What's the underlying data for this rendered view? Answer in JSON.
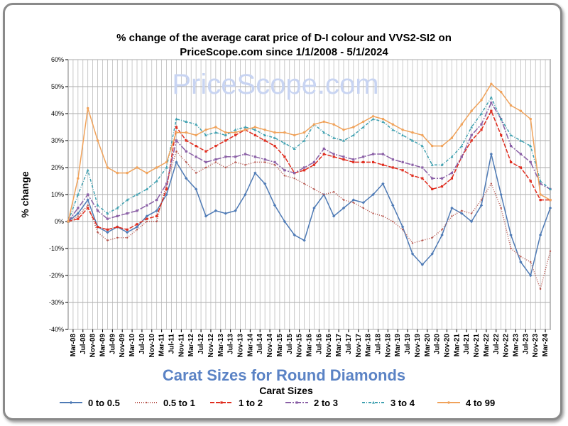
{
  "chart_data": {
    "type": "line",
    "title_line1": "% change of the average carat price of  D-I colour and VVS2-SI2  on",
    "title_line2": "PriceScope.com since 1/1/2008 - 5/1/2024",
    "watermark": "PriceScope.com",
    "ylabel": "% change",
    "banner": "Carat Sizes for Round Diamonds",
    "xlabel": "Carat Sizes",
    "ylim": [
      -40,
      60
    ],
    "y_ticks": [
      "-40%",
      "-30%",
      "-20%",
      "-10%",
      "0%",
      "10%",
      "20%",
      "30%",
      "40%",
      "50%",
      "60%"
    ],
    "x_tick_labels": [
      "Mar-08",
      "Jul-08",
      "Nov-08",
      "Mar-09",
      "Jul-09",
      "Nov-09",
      "Mar-10",
      "Jul-10",
      "Nov-10",
      "Mar-11",
      "Jul-11",
      "Nov-11",
      "Mar-12",
      "Jul-12",
      "Nov-12",
      "Mar-13",
      "Jul-13",
      "Nov-13",
      "Mar-14",
      "Jul-14",
      "Nov-14",
      "Mar-15",
      "Jul-15",
      "Nov-15",
      "Mar-16",
      "Jul-16",
      "Nov-16",
      "Mar-17",
      "Jul-17",
      "Nov-17",
      "Mar-18",
      "Jul-18",
      "Nov-18",
      "Mar-19",
      "Jul-19",
      "Nov-19",
      "Mar-20",
      "Jul-20",
      "Nov-20",
      "Mar-21",
      "Jul-21",
      "Nov-21",
      "Mar-22",
      "Jul-22",
      "Nov-22",
      "Mar-23",
      "Jul-23",
      "Nov-23",
      "Mar-24"
    ],
    "x_start": "2008-01",
    "x_end": "2024-05",
    "grid": true,
    "legend_position": "bottom",
    "series": [
      {
        "name": "0 to 0.5",
        "color": "#4e7ab5",
        "dash": "solid",
        "marker": "diamond",
        "x": [
          "2008-01",
          "2008-05",
          "2008-09",
          "2009-01",
          "2009-05",
          "2009-09",
          "2010-01",
          "2010-05",
          "2010-09",
          "2011-01",
          "2011-05",
          "2011-09",
          "2012-01",
          "2012-05",
          "2012-09",
          "2013-01",
          "2013-05",
          "2013-09",
          "2014-01",
          "2014-05",
          "2014-09",
          "2015-01",
          "2015-05",
          "2015-09",
          "2016-01",
          "2016-05",
          "2016-09",
          "2017-01",
          "2017-05",
          "2017-09",
          "2018-01",
          "2018-05",
          "2018-09",
          "2019-01",
          "2019-05",
          "2019-09",
          "2020-01",
          "2020-05",
          "2020-09",
          "2021-01",
          "2021-05",
          "2021-09",
          "2022-01",
          "2022-05",
          "2022-09",
          "2023-01",
          "2023-05",
          "2023-09",
          "2024-01",
          "2024-05"
        ],
        "values": [
          0,
          3,
          8,
          -2,
          -4,
          -2,
          -4,
          -2,
          2,
          4,
          10,
          22,
          16,
          12,
          2,
          4,
          3,
          4,
          10,
          18,
          14,
          6,
          0,
          -5,
          -7,
          5,
          10,
          2,
          5,
          8,
          7,
          10,
          14,
          6,
          -2,
          -12,
          -16,
          -12,
          -5,
          5,
          3,
          0,
          6,
          25,
          10,
          -5,
          -15,
          -20,
          -5,
          5
        ]
      },
      {
        "name": "0.5 to 1",
        "color": "#b5524a",
        "dash": "1,2",
        "marker": "dot",
        "x": [
          "2008-01",
          "2008-05",
          "2008-09",
          "2009-01",
          "2009-05",
          "2009-09",
          "2010-01",
          "2010-05",
          "2010-09",
          "2011-01",
          "2011-05",
          "2011-09",
          "2012-01",
          "2012-05",
          "2012-09",
          "2013-01",
          "2013-05",
          "2013-09",
          "2014-01",
          "2014-05",
          "2014-09",
          "2015-01",
          "2015-05",
          "2015-09",
          "2016-01",
          "2016-05",
          "2016-09",
          "2017-01",
          "2017-05",
          "2017-09",
          "2018-01",
          "2018-05",
          "2018-09",
          "2019-01",
          "2019-05",
          "2019-09",
          "2020-01",
          "2020-05",
          "2020-09",
          "2021-01",
          "2021-05",
          "2021-09",
          "2022-01",
          "2022-05",
          "2022-09",
          "2023-01",
          "2023-05",
          "2023-09",
          "2024-01",
          "2024-05"
        ],
        "values": [
          0,
          2,
          6,
          -4,
          -7,
          -6,
          -6,
          -3,
          0,
          0,
          14,
          26,
          22,
          18,
          20,
          22,
          20,
          22,
          21,
          22,
          22,
          21,
          17,
          16,
          14,
          12,
          10,
          11,
          8,
          7,
          5,
          3,
          2,
          0,
          -3,
          -8,
          -7,
          -6,
          -3,
          2,
          4,
          3,
          8,
          14,
          5,
          -10,
          -13,
          -15,
          -25,
          -11
        ]
      },
      {
        "name": "1 to 2",
        "color": "#e02d1f",
        "dash": "6,2",
        "marker": "square",
        "x": [
          "2008-01",
          "2008-05",
          "2008-09",
          "2009-01",
          "2009-05",
          "2009-09",
          "2010-01",
          "2010-05",
          "2010-09",
          "2011-01",
          "2011-05",
          "2011-09",
          "2012-01",
          "2012-05",
          "2012-09",
          "2013-01",
          "2013-05",
          "2013-09",
          "2014-01",
          "2014-05",
          "2014-09",
          "2015-01",
          "2015-05",
          "2015-09",
          "2016-01",
          "2016-05",
          "2016-09",
          "2017-01",
          "2017-05",
          "2017-09",
          "2018-01",
          "2018-05",
          "2018-09",
          "2019-01",
          "2019-05",
          "2019-09",
          "2020-01",
          "2020-05",
          "2020-09",
          "2021-01",
          "2021-05",
          "2021-09",
          "2022-01",
          "2022-05",
          "2022-09",
          "2023-01",
          "2023-05",
          "2023-09",
          "2024-01",
          "2024-05"
        ],
        "values": [
          0,
          1,
          5,
          -2,
          -3,
          -2,
          -3,
          -1,
          1,
          2,
          12,
          35,
          30,
          28,
          26,
          28,
          30,
          32,
          34,
          32,
          30,
          28,
          24,
          18,
          19,
          21,
          25,
          24,
          23,
          22,
          22,
          22,
          21,
          20,
          19,
          17,
          16,
          12,
          13,
          16,
          24,
          30,
          34,
          41,
          32,
          22,
          20,
          15,
          8,
          8
        ]
      },
      {
        "name": "2 to 3",
        "color": "#8a5fa6",
        "dash": "8,2,2,2",
        "marker": "square",
        "x": [
          "2008-01",
          "2008-05",
          "2008-09",
          "2009-01",
          "2009-05",
          "2009-09",
          "2010-01",
          "2010-05",
          "2010-09",
          "2011-01",
          "2011-05",
          "2011-09",
          "2012-01",
          "2012-05",
          "2012-09",
          "2013-01",
          "2013-05",
          "2013-09",
          "2014-01",
          "2014-05",
          "2014-09",
          "2015-01",
          "2015-05",
          "2015-09",
          "2016-01",
          "2016-05",
          "2016-09",
          "2017-01",
          "2017-05",
          "2017-09",
          "2018-01",
          "2018-05",
          "2018-09",
          "2019-01",
          "2019-05",
          "2019-09",
          "2020-01",
          "2020-05",
          "2020-09",
          "2021-01",
          "2021-05",
          "2021-09",
          "2022-01",
          "2022-05",
          "2022-09",
          "2023-01",
          "2023-05",
          "2023-09",
          "2024-01",
          "2024-05"
        ],
        "values": [
          0,
          5,
          10,
          4,
          1,
          2,
          3,
          4,
          6,
          8,
          14,
          30,
          26,
          24,
          22,
          23,
          24,
          24,
          25,
          24,
          23,
          22,
          19,
          18,
          20,
          22,
          27,
          25,
          24,
          23,
          24,
          25,
          25,
          23,
          22,
          21,
          20,
          16,
          16,
          18,
          24,
          32,
          36,
          44,
          38,
          28,
          25,
          22,
          14,
          12
        ]
      },
      {
        "name": "3 to 4",
        "color": "#3fa0b0",
        "dash": "4,2,1,2",
        "marker": "triangle",
        "x": [
          "2008-01",
          "2008-05",
          "2008-09",
          "2009-01",
          "2009-05",
          "2009-09",
          "2010-01",
          "2010-05",
          "2010-09",
          "2011-01",
          "2011-05",
          "2011-09",
          "2012-01",
          "2012-05",
          "2012-09",
          "2013-01",
          "2013-05",
          "2013-09",
          "2014-01",
          "2014-05",
          "2014-09",
          "2015-01",
          "2015-05",
          "2015-09",
          "2016-01",
          "2016-05",
          "2016-09",
          "2017-01",
          "2017-05",
          "2017-09",
          "2018-01",
          "2018-05",
          "2018-09",
          "2019-01",
          "2019-05",
          "2019-09",
          "2020-01",
          "2020-05",
          "2020-09",
          "2021-01",
          "2021-05",
          "2021-09",
          "2022-01",
          "2022-05",
          "2022-09",
          "2023-01",
          "2023-05",
          "2023-09",
          "2024-01",
          "2024-05"
        ],
        "values": [
          0,
          10,
          19,
          6,
          3,
          5,
          8,
          10,
          12,
          15,
          20,
          38,
          37,
          36,
          32,
          33,
          32,
          34,
          35,
          34,
          32,
          31,
          29,
          27,
          30,
          36,
          33,
          31,
          30,
          32,
          35,
          38,
          37,
          34,
          32,
          30,
          28,
          21,
          21,
          24,
          28,
          35,
          40,
          46,
          38,
          32,
          30,
          28,
          15,
          12
        ]
      },
      {
        "name": "4 to 99",
        "color": "#f0a25a",
        "dash": "solid",
        "marker": "circle",
        "x": [
          "2008-01",
          "2008-05",
          "2008-09",
          "2009-01",
          "2009-05",
          "2009-09",
          "2010-01",
          "2010-05",
          "2010-09",
          "2011-01",
          "2011-05",
          "2011-09",
          "2012-01",
          "2012-05",
          "2012-09",
          "2013-01",
          "2013-05",
          "2013-09",
          "2014-01",
          "2014-05",
          "2014-09",
          "2015-01",
          "2015-05",
          "2015-09",
          "2016-01",
          "2016-05",
          "2016-09",
          "2017-01",
          "2017-05",
          "2017-09",
          "2018-01",
          "2018-05",
          "2018-09",
          "2019-01",
          "2019-05",
          "2019-09",
          "2020-01",
          "2020-05",
          "2020-09",
          "2021-01",
          "2021-05",
          "2021-09",
          "2022-01",
          "2022-05",
          "2022-09",
          "2023-01",
          "2023-05",
          "2023-09",
          "2024-01",
          "2024-05"
        ],
        "values": [
          0,
          16,
          42,
          30,
          20,
          18,
          18,
          20,
          18,
          20,
          22,
          33,
          33,
          32,
          34,
          35,
          33,
          33,
          34,
          35,
          34,
          33,
          33,
          32,
          33,
          36,
          37,
          36,
          34,
          35,
          37,
          39,
          38,
          36,
          34,
          33,
          32,
          28,
          28,
          31,
          36,
          41,
          45,
          51,
          48,
          43,
          41,
          38,
          10,
          8
        ]
      }
    ]
  }
}
